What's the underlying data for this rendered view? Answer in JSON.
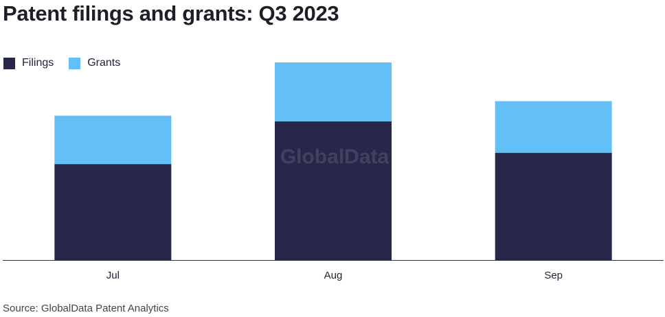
{
  "title": "Patent filings and grants: Q3 2023",
  "source": "Source: GlobalData Patent Analytics",
  "watermark": "GlobalData",
  "colors": {
    "filings": "#27274a",
    "grants": "#62c0f6",
    "axis": "#333333"
  },
  "chart_data": {
    "type": "bar",
    "stacked": true,
    "categories": [
      "Jul",
      "Aug",
      "Sep"
    ],
    "series": [
      {
        "name": "Filings",
        "values": [
          119,
          172,
          133
        ]
      },
      {
        "name": "Grants",
        "values": [
          60,
          73,
          64
        ]
      }
    ],
    "ylim": [
      0,
      245
    ],
    "grid": false,
    "legend_position": "top-left"
  }
}
